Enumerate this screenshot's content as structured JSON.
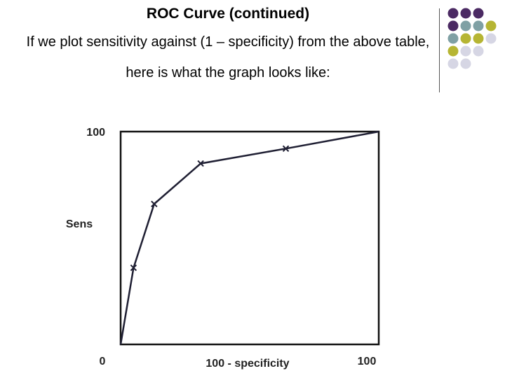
{
  "slide": {
    "title": "ROC Curve (continued)",
    "subtitle": "If we plot sensitivity against (1 – specificity) from the above table, here is what the graph looks like:"
  },
  "decor_dots": {
    "colors": {
      "purple": "#4b2a63",
      "teal": "#7fa0a4",
      "olive": "#b6b533",
      "lilac": "#d6d6e4"
    },
    "rows": [
      [
        "purple",
        "purple",
        "purple",
        null
      ],
      [
        "purple",
        "teal",
        "teal",
        "olive"
      ],
      [
        "teal",
        "olive",
        "olive",
        "lilac"
      ],
      [
        "olive",
        "lilac",
        "lilac",
        null
      ],
      [
        "lilac",
        "lilac",
        null,
        null
      ]
    ]
  },
  "chart_data": {
    "type": "line",
    "title": "",
    "xlabel": "100 - specificity",
    "ylabel": "Sens",
    "xlim": [
      0,
      100
    ],
    "ylim": [
      0,
      100
    ],
    "x_tick_labels": [
      {
        "x": 0,
        "label": "0"
      },
      {
        "x": 100,
        "label": "100"
      }
    ],
    "y_tick_labels": [
      {
        "y": 100,
        "label": "100"
      }
    ],
    "grid": false,
    "series": [
      {
        "x": [
          0,
          5,
          13,
          31,
          64,
          100
        ],
        "y": [
          0,
          36,
          66,
          85,
          92,
          100
        ],
        "markers": [
          false,
          true,
          true,
          true,
          true,
          false
        ]
      }
    ],
    "line_color": "#1f1f33"
  }
}
